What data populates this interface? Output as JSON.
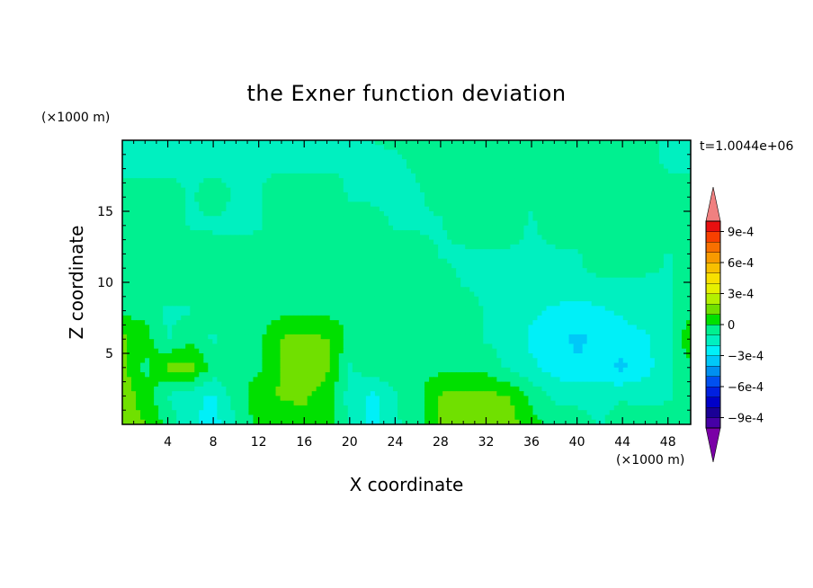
{
  "chart_data": {
    "type": "heatmap",
    "title": "the Exner function deviation",
    "xlabel": "X coordinate",
    "ylabel": "Z coordinate",
    "x_unit": "(×1000 m)",
    "y_unit": "(×1000 m)",
    "time_label": "t=1.0044e+06",
    "xlim": [
      0,
      50
    ],
    "ylim": [
      0,
      20
    ],
    "x_ticks": [
      4,
      8,
      12,
      16,
      20,
      24,
      28,
      32,
      36,
      40,
      44,
      48
    ],
    "y_ticks": [
      5,
      10,
      15
    ],
    "colorbar": {
      "levels": [
        -0.0011,
        -0.001,
        -0.0009,
        -0.0008,
        -0.0007,
        -0.0006,
        -0.0005,
        -0.0004,
        -0.0003,
        -0.0002,
        -0.0001,
        0,
        0.0001,
        0.0002,
        0.0003,
        0.0004,
        0.0005,
        0.0006,
        0.0007,
        0.0008,
        0.0009,
        0.001,
        0.0011
      ],
      "tick_labels": [
        "9e-4",
        "6e-4",
        "3e-4",
        "0",
        "−3e-4",
        "−6e-4",
        "−9e-4"
      ],
      "tick_values": [
        0.0009,
        0.0006,
        0.0003,
        0,
        -0.0003,
        -0.0006,
        -0.0009
      ]
    },
    "field": {
      "x": [
        0,
        2,
        4,
        6,
        8,
        10,
        12,
        14,
        16,
        18,
        20,
        22,
        24,
        26,
        28,
        30,
        32,
        34,
        36,
        38,
        40,
        42,
        44,
        46,
        48,
        50
      ],
      "z": [
        20,
        18,
        16,
        14,
        12,
        10,
        8,
        6,
        4,
        2,
        0
      ],
      "values": [
        [
          -0.00012,
          -0.00012,
          -0.00013,
          -0.00012,
          -0.00012,
          -0.00011,
          -0.00011,
          -0.00011,
          -0.00011,
          -0.00011,
          -0.00011,
          -0.0001,
          -9e-05,
          -6e-05,
          -4e-05,
          -4e-05,
          -3e-05,
          -3e-05,
          -3e-05,
          -2e-05,
          -3e-05,
          -3e-05,
          -5e-05,
          -8e-05,
          -0.00012,
          -0.00012
        ],
        [
          -0.00012,
          -0.00013,
          -0.00013,
          -0.00012,
          -0.00012,
          -0.00012,
          -0.00011,
          -0.00011,
          -0.00012,
          -0.00011,
          -0.00011,
          -0.00011,
          -0.00012,
          -9e-05,
          -5e-05,
          -4e-05,
          -3e-05,
          -3e-05,
          -3e-05,
          -2e-05,
          -3e-05,
          -3e-05,
          -4e-05,
          -7e-05,
          -0.00011,
          -0.00012
        ],
        [
          -5e-05,
          -4e-05,
          -3e-05,
          -0.00012,
          -4e-05,
          -0.00012,
          -0.00011,
          -3e-05,
          -3e-05,
          -4e-05,
          -0.00011,
          -0.00012,
          -0.00012,
          -0.00011,
          -7e-05,
          -4e-05,
          -3e-05,
          -4e-05,
          -8e-05,
          -4e-05,
          -3e-05,
          -3e-05,
          -4e-05,
          -3e-05,
          -3e-05,
          -4e-05
        ],
        [
          -4e-05,
          -3e-05,
          -3e-05,
          -0.00011,
          -0.00012,
          -0.00013,
          -0.00012,
          -4e-05,
          -3e-05,
          -3e-05,
          -4e-05,
          -4e-05,
          -0.00012,
          -0.00012,
          -0.00011,
          -4e-05,
          -3e-05,
          -4e-05,
          -0.00012,
          -4e-05,
          -3e-05,
          -3e-05,
          -3e-05,
          -3e-05,
          -3e-05,
          -4e-05
        ],
        [
          -4e-05,
          -4e-05,
          -3e-05,
          -3e-05,
          -4e-05,
          -4e-05,
          -3e-05,
          -3e-05,
          -2e-05,
          -2e-05,
          -2e-05,
          -3e-05,
          -3e-05,
          -4e-05,
          -0.00011,
          -0.00012,
          -0.00012,
          -0.00012,
          -0.00012,
          -0.00012,
          -0.00011,
          -3e-05,
          -3e-05,
          -4e-05,
          -0.00011,
          -4e-05
        ],
        [
          -4e-05,
          -0.00011,
          -3e-05,
          -4e-05,
          -3e-05,
          -3e-05,
          -3e-05,
          -2e-05,
          -2e-05,
          -2e-05,
          -3e-05,
          -3e-05,
          -4e-05,
          -4e-05,
          -4e-05,
          -0.00011,
          -0.00012,
          -0.00013,
          -0.00013,
          -0.00012,
          -0.00012,
          -0.00012,
          -0.00011,
          -0.00012,
          -0.00011,
          -4e-05
        ],
        [
          -3e-05,
          -4e-05,
          -0.00012,
          -0.00011,
          -3e-05,
          -3e-05,
          -3e-05,
          -3e-05,
          -3e-05,
          -3e-05,
          -3e-05,
          -3e-05,
          -4e-05,
          -4e-05,
          -3e-05,
          -4e-05,
          -0.00011,
          -0.00013,
          -0.00018,
          -0.00022,
          -0.00024,
          -0.00022,
          -0.00018,
          -0.00013,
          -0.00011,
          -4e-05
        ],
        [
          0.00012,
          5e-05,
          -0.00011,
          -3e-05,
          -0.00012,
          -3e-05,
          -3e-05,
          0.00011,
          0.00012,
          0.00011,
          -3e-05,
          -3e-05,
          -3e-05,
          -3e-05,
          -3e-05,
          -3e-05,
          -0.00011,
          -0.00014,
          -0.00022,
          -0.00028,
          -0.00032,
          -0.00028,
          -0.00026,
          -0.00022,
          -0.00013,
          0.00011
        ],
        [
          0.00013,
          -3e-05,
          0.00012,
          0.00014,
          -3e-05,
          -3e-05,
          -2e-05,
          0.00012,
          0.00017,
          0.00012,
          -0.00011,
          -3e-05,
          -3e-05,
          -3e-05,
          -3e-05,
          -3e-05,
          -4e-05,
          -0.00012,
          -0.00018,
          -0.00024,
          -0.00028,
          -0.00028,
          -0.00032,
          -0.00024,
          -0.00013,
          -3e-05
        ],
        [
          0.00017,
          5e-05,
          -0.00011,
          -0.00017,
          -0.00022,
          -4e-05,
          5e-05,
          0.00011,
          0.00012,
          5e-05,
          -0.00014,
          -0.00023,
          -0.00011,
          -3e-05,
          0.00011,
          0.00012,
          0.00012,
          0.00011,
          -3e-05,
          -0.00012,
          -0.00014,
          -0.00013,
          -0.00012,
          -0.00013,
          -0.00012,
          -3e-05
        ],
        [
          0.00012,
          0.00011,
          -3e-05,
          -0.00018,
          -0.00024,
          -0.00011,
          4e-05,
          5e-05,
          6e-05,
          4e-05,
          -0.00012,
          -0.00024,
          -0.00012,
          -3e-05,
          0.00011,
          0.00012,
          0.00018,
          0.00014,
          4e-05,
          -3e-05,
          -4e-05,
          -0.00011,
          -3e-05,
          -4e-05,
          -3e-05,
          -3e-05
        ]
      ]
    }
  }
}
